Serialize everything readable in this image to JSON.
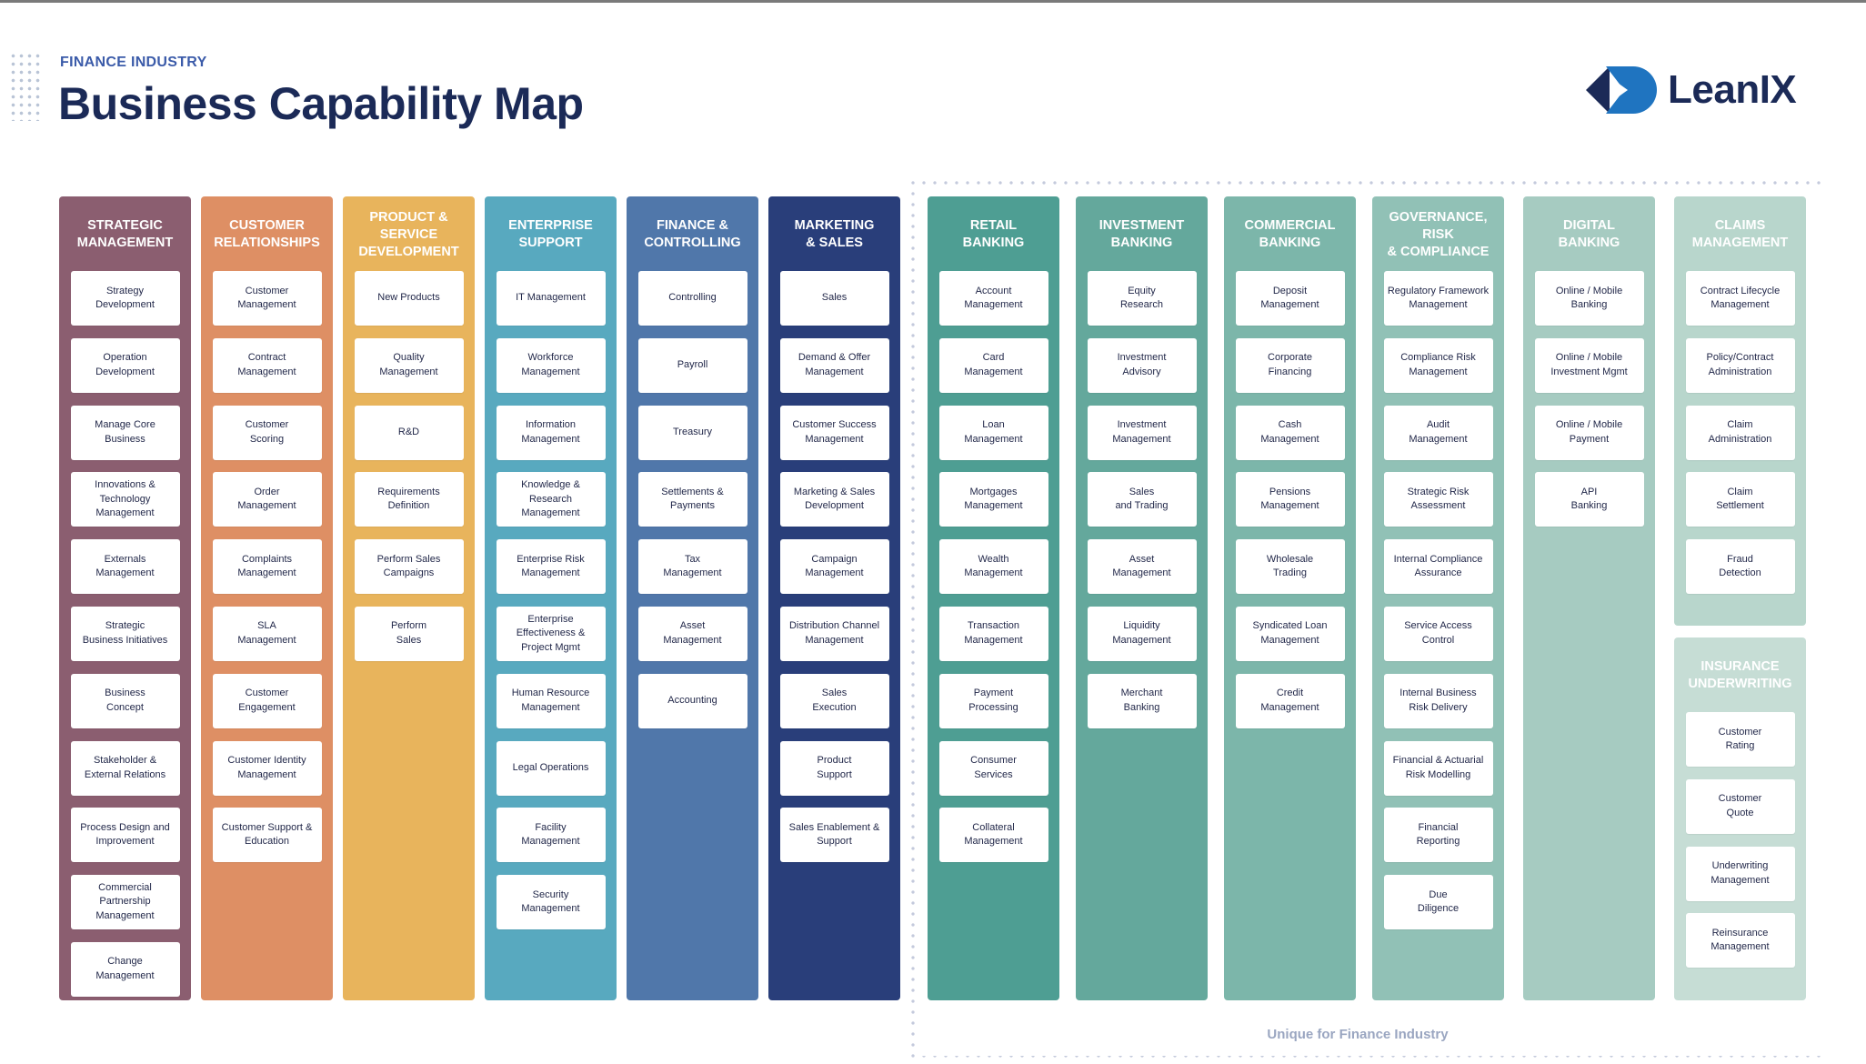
{
  "header": {
    "eyebrow": "FINANCE INDUSTRY",
    "title": "Business Capability Map",
    "brand": "LeanIX"
  },
  "unique_label": "Unique for Finance Industry",
  "columns": [
    {
      "id": "strategic",
      "title": "STRATEGIC\nMANAGEMENT",
      "color": "#8b5e70",
      "items": [
        "Strategy\nDevelopment",
        "Operation\nDevelopment",
        "Manage Core\nBusiness",
        "Innovations &\nTechnology\nManagement",
        "Externals\nManagement",
        "Strategic\nBusiness Initiatives",
        "Business\nConcept",
        "Stakeholder &\nExternal Relations",
        "Process Design and\nImprovement",
        "Commercial\nPartnership\nManagement",
        "Change\nManagement"
      ]
    },
    {
      "id": "customer",
      "title": "CUSTOMER\nRELATIONSHIPS",
      "color": "#de8f64",
      "items": [
        "Customer\nManagement",
        "Contract\nManagement",
        "Customer\nScoring",
        "Order\nManagement",
        "Complaints\nManagement",
        "SLA\nManagement",
        "Customer\nEngagement",
        "Customer Identity\nManagement",
        "Customer Support &\nEducation"
      ]
    },
    {
      "id": "product",
      "title": "PRODUCT & SERVICE\nDEVELOPMENT",
      "color": "#e8b45c",
      "items": [
        "New Products",
        "Quality\nManagement",
        "R&D",
        "Requirements\nDefinition",
        "Perform Sales\nCampaigns",
        "Perform\nSales"
      ]
    },
    {
      "id": "enterprise",
      "title": "ENTERPRISE\nSUPPORT",
      "color": "#58a9bf",
      "items": [
        "IT Management",
        "Workforce\nManagement",
        "Information\nManagement",
        "Knowledge &\nResearch\nManagement",
        "Enterprise Risk\nManagement",
        "Enterprise\nEffectiveness &\nProject Mgmt",
        "Human Resource\nManagement",
        "Legal Operations",
        "Facility\nManagement",
        "Security\nManagement"
      ]
    },
    {
      "id": "finance",
      "title": "FINANCE &\nCONTROLLING",
      "color": "#5077aa",
      "items": [
        "Controlling",
        "Payroll",
        "Treasury",
        "Settlements &\nPayments",
        "Tax\nManagement",
        "Asset\nManagement",
        "Accounting"
      ]
    },
    {
      "id": "marketing",
      "title": "MARKETING\n& SALES",
      "color": "#293e7a",
      "items": [
        "Sales",
        "Demand & Offer\nManagement",
        "Customer Success\nManagement",
        "Marketing & Sales\nDevelopment",
        "Campaign\nManagement",
        "Distribution Channel\nManagement",
        "Sales\nExecution",
        "Product\nSupport",
        "Sales Enablement &\nSupport"
      ]
    },
    {
      "id": "retail",
      "title": "RETAIL\nBANKING",
      "color": "#4e9e93",
      "items": [
        "Account\nManagement",
        "Card\nManagement",
        "Loan\nManagement",
        "Mortgages\nManagement",
        "Wealth\nManagement",
        "Transaction\nManagement",
        "Payment\nProcessing",
        "Consumer\nServices",
        "Collateral\nManagement"
      ]
    },
    {
      "id": "investment",
      "title": "INVESTMENT\nBANKING",
      "color": "#64a89c",
      "items": [
        "Equity\nResearch",
        "Investment\nAdvisory",
        "Investment\nManagement",
        "Sales\nand Trading",
        "Asset\nManagement",
        "Liquidity\nManagement",
        "Merchant\nBanking"
      ]
    },
    {
      "id": "commercial",
      "title": "COMMERCIAL\nBANKING",
      "color": "#7cb6aa",
      "items": [
        "Deposit\nManagement",
        "Corporate\nFinancing",
        "Cash\nManagement",
        "Pensions\nManagement",
        "Wholesale\nTrading",
        "Syndicated Loan\nManagement",
        "Credit\nManagement"
      ]
    },
    {
      "id": "governance",
      "title": "GOVERNANCE, RISK\n& COMPLIANCE",
      "color": "#91c1b6",
      "items": [
        "Regulatory Framework\nManagement",
        "Compliance Risk\nManagement",
        "Audit\nManagement",
        "Strategic Risk\nAssessment",
        "Internal Compliance\nAssurance",
        "Service Access\nControl",
        "Internal Business\nRisk Delivery",
        "Financial & Actuarial\nRisk  Modelling",
        "Financial\nReporting",
        "Due\nDiligence"
      ]
    },
    {
      "id": "digital",
      "title": "DIGITAL\nBANKING",
      "color": "#a6cbc1",
      "items": [
        "Online / Mobile\nBanking",
        "Online / Mobile\nInvestment Mgmt",
        "Online / Mobile\nPayment",
        "API\nBanking"
      ]
    },
    {
      "id": "claims",
      "title": "CLAIMS\nMANAGEMENT",
      "color": "#b8d6cc",
      "items": [
        "Contract Lifecycle\nManagement",
        "Policy/Contract\nAdministration",
        "Claim\nAdministration",
        "Claim\nSettlement",
        "Fraud\nDetection"
      ]
    },
    {
      "id": "insurance",
      "title": "INSURANCE\nUNDERWRITING",
      "color": "#c6ddd5",
      "items": [
        "Customer\nRating",
        "Customer\nQuote",
        "Underwriting\nManagement",
        "Reinsurance\nManagement"
      ]
    }
  ]
}
